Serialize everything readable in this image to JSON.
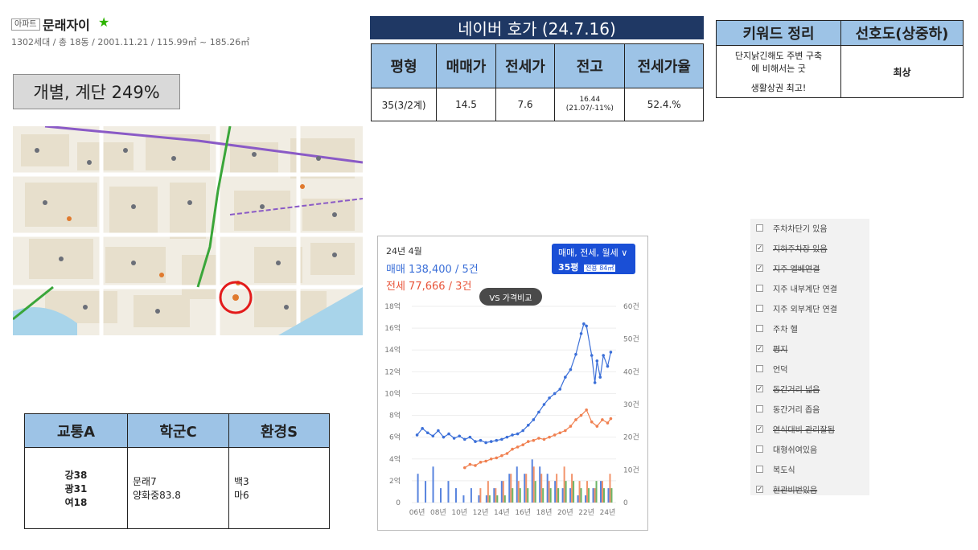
{
  "header": {
    "type_badge": "아파트",
    "name": "문래자이",
    "star": "★",
    "info": "1302세대 / 총 18동 / 2001.11.21 / 115.99㎡ ~ 185.26㎡"
  },
  "badge": "개별, 계단 249%",
  "naver": {
    "title": "네이버 호가 (24.7.16)",
    "headers": [
      "평형",
      "매매가",
      "전세가",
      "전고",
      "전세가율"
    ],
    "row": {
      "size": "35(3/2계)",
      "sale": "14.5",
      "jeonse": "7.6",
      "high_line1": "16.44",
      "high_line2": "(21.07/-11%)",
      "ratio": "52.4.%"
    }
  },
  "keywords": {
    "headers": [
      "키워드 정리",
      "선호도(상중하)"
    ],
    "desc_line1": "단지낡긴해도 주변 구축",
    "desc_line2": "에 비해서는 굿",
    "desc_line3": "생활상권 최고!",
    "rating": "최상"
  },
  "scores": {
    "headers": [
      "교통A",
      "학군C",
      "환경S"
    ],
    "transport": [
      "강38",
      "광31",
      "여18"
    ],
    "school": [
      "문래7",
      "양화중83.8"
    ],
    "environment": [
      "백3",
      "마6"
    ]
  },
  "chart_panel": {
    "period": "24년 4월",
    "sale_summary": "매매 138,400 / 5건",
    "jeonse_summary": "전세 77,666 / 3건",
    "filter_label": "매매, 전세, 월세 ∨",
    "size_label": "35평",
    "area_label": "전용 84㎡",
    "compare_button": "VS 가격비교",
    "colors": {
      "sale": "#3b6fd8",
      "jeonse": "#f08050",
      "filter_bg": "#1a4fd6"
    }
  },
  "chart_data": {
    "type": "line",
    "x_ticks": [
      "06년",
      "08년",
      "10년",
      "12년",
      "14년",
      "16년",
      "18년",
      "20년",
      "22년",
      "24년"
    ],
    "y_left_ticks": [
      "0",
      "2억",
      "4억",
      "6억",
      "8억",
      "10억",
      "12억",
      "14억",
      "16억",
      "18억"
    ],
    "y_right_ticks": [
      "0",
      "10건",
      "20건",
      "30건",
      "40건",
      "50건",
      "60건"
    ],
    "ylim_left": [
      0,
      18
    ],
    "ylim_right": [
      0,
      60
    ],
    "series": [
      {
        "name": "매매",
        "color": "#3b6fd8",
        "points": [
          [
            2006.0,
            6.2
          ],
          [
            2006.5,
            6.8
          ],
          [
            2007.0,
            6.4
          ],
          [
            2007.5,
            6.1
          ],
          [
            2008.0,
            6.6
          ],
          [
            2008.5,
            6.0
          ],
          [
            2009.0,
            6.3
          ],
          [
            2009.5,
            5.9
          ],
          [
            2010.0,
            6.1
          ],
          [
            2010.5,
            5.8
          ],
          [
            2011.0,
            6.0
          ],
          [
            2011.5,
            5.6
          ],
          [
            2012.0,
            5.7
          ],
          [
            2012.5,
            5.5
          ],
          [
            2013.0,
            5.6
          ],
          [
            2013.5,
            5.7
          ],
          [
            2014.0,
            5.8
          ],
          [
            2014.5,
            6.0
          ],
          [
            2015.0,
            6.2
          ],
          [
            2015.5,
            6.3
          ],
          [
            2016.0,
            6.6
          ],
          [
            2016.5,
            7.1
          ],
          [
            2017.0,
            7.6
          ],
          [
            2017.5,
            8.3
          ],
          [
            2018.0,
            9.0
          ],
          [
            2018.5,
            9.6
          ],
          [
            2019.0,
            10.0
          ],
          [
            2019.5,
            10.4
          ],
          [
            2020.0,
            11.5
          ],
          [
            2020.5,
            12.2
          ],
          [
            2021.0,
            13.6
          ],
          [
            2021.5,
            15.5
          ],
          [
            2021.75,
            16.4
          ],
          [
            2022.0,
            16.2
          ],
          [
            2022.5,
            13.5
          ],
          [
            2022.8,
            11.0
          ],
          [
            2023.0,
            13.0
          ],
          [
            2023.3,
            11.5
          ],
          [
            2023.6,
            13.5
          ],
          [
            2024.0,
            12.5
          ],
          [
            2024.3,
            13.8
          ]
        ]
      },
      {
        "name": "전세",
        "color": "#f08050",
        "points": [
          [
            2010.5,
            3.2
          ],
          [
            2011.0,
            3.5
          ],
          [
            2011.5,
            3.4
          ],
          [
            2012.0,
            3.7
          ],
          [
            2012.5,
            3.8
          ],
          [
            2013.0,
            4.0
          ],
          [
            2013.5,
            4.1
          ],
          [
            2014.0,
            4.3
          ],
          [
            2014.5,
            4.5
          ],
          [
            2015.0,
            4.9
          ],
          [
            2015.5,
            5.1
          ],
          [
            2016.0,
            5.3
          ],
          [
            2016.5,
            5.6
          ],
          [
            2017.0,
            5.7
          ],
          [
            2017.5,
            5.9
          ],
          [
            2018.0,
            5.8
          ],
          [
            2018.5,
            6.0
          ],
          [
            2019.0,
            6.2
          ],
          [
            2019.5,
            6.4
          ],
          [
            2020.0,
            6.6
          ],
          [
            2020.5,
            7.0
          ],
          [
            2021.0,
            7.6
          ],
          [
            2021.5,
            8.0
          ],
          [
            2022.0,
            8.5
          ],
          [
            2022.5,
            7.4
          ],
          [
            2023.0,
            7.0
          ],
          [
            2023.5,
            7.6
          ],
          [
            2024.0,
            7.3
          ],
          [
            2024.3,
            7.7
          ]
        ]
      }
    ],
    "volume": [
      {
        "name": "매매 거래량",
        "color": "#3b6fd8",
        "values": [
          4,
          3,
          5,
          2,
          3,
          2,
          1,
          2,
          1,
          1,
          2,
          3,
          4,
          5,
          4,
          6,
          5,
          4,
          3,
          2,
          2,
          1,
          1,
          2,
          3,
          2
        ]
      },
      {
        "name": "전세 거래량",
        "color": "#f08050",
        "values": [
          0,
          0,
          0,
          0,
          0,
          0,
          0,
          0,
          2,
          3,
          2,
          3,
          4,
          3,
          4,
          5,
          4,
          3,
          4,
          5,
          4,
          3,
          3,
          2,
          3,
          4
        ]
      },
      {
        "name": "월세 거래량",
        "color": "#52a84f",
        "values": [
          0,
          0,
          0,
          0,
          0,
          0,
          0,
          0,
          0,
          1,
          1,
          1,
          2,
          2,
          2,
          3,
          2,
          2,
          2,
          3,
          3,
          2,
          2,
          3,
          2,
          2
        ]
      }
    ]
  },
  "checklist": [
    {
      "label": "주차차단기 있음",
      "checked": false,
      "struck": false
    },
    {
      "label": "지하주차장 있음",
      "checked": true,
      "struck": true
    },
    {
      "label": "지주 엘베연결",
      "checked": true,
      "struck": true
    },
    {
      "label": "지주 내부계단 연결",
      "checked": false,
      "struck": false
    },
    {
      "label": "지주 외부계단 연결",
      "checked": false,
      "struck": false
    },
    {
      "label": "주차 헬",
      "checked": false,
      "struck": false
    },
    {
      "label": "평지",
      "checked": true,
      "struck": true
    },
    {
      "label": "언덕",
      "checked": false,
      "struck": false
    },
    {
      "label": "동간거리 넓음",
      "checked": true,
      "struck": true
    },
    {
      "label": "동간거리 좁음",
      "checked": false,
      "struck": false
    },
    {
      "label": "연식대비 관리잘됨",
      "checked": true,
      "struck": true
    },
    {
      "label": "대형쉬여있음",
      "checked": false,
      "struck": false
    },
    {
      "label": "복도식",
      "checked": false,
      "struck": false
    },
    {
      "label": "현관비번있음",
      "checked": true,
      "struck": true
    }
  ],
  "map": {
    "colors": {
      "base": "#f1ede3",
      "block": "#e7dfcc",
      "road": "#ffffff",
      "green_line": "#3aa63a",
      "purple_line": "#8a5ac6",
      "river": "#a8d4ea",
      "marker": "#e31b1b"
    }
  }
}
